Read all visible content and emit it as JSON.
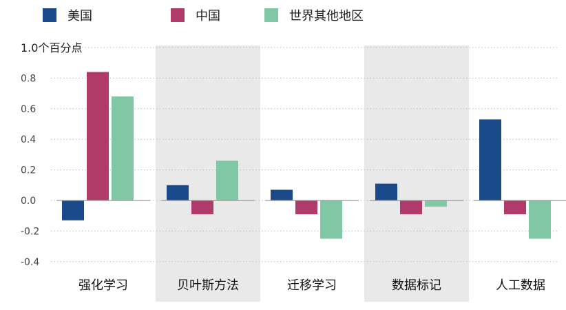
{
  "chart_data": {
    "type": "bar",
    "ylabel": "1.0个百分点",
    "ylim": [
      -0.4,
      1.0
    ],
    "yticks": [
      {
        "v": 0.8,
        "label": "0.8"
      },
      {
        "v": 0.6,
        "label": "0.6"
      },
      {
        "v": 0.4,
        "label": "0.4"
      },
      {
        "v": 0.2,
        "label": "0.2"
      },
      {
        "v": 0.0,
        "label": "0.0"
      },
      {
        "v": -0.2,
        "label": "-0.2"
      },
      {
        "v": -0.4,
        "label": "-0.4"
      }
    ],
    "categories": [
      "强化学习",
      "贝叶斯方法",
      "迁移学习",
      "数据标记",
      "人工数据"
    ],
    "shaded_categories": [
      false,
      true,
      false,
      true,
      false
    ],
    "legend_position": "top",
    "grid": "dotted-horizontal",
    "series": [
      {
        "name": "美国",
        "color": "#1a4a8a",
        "values": [
          -0.13,
          0.1,
          0.07,
          0.11,
          0.53
        ]
      },
      {
        "name": "中国",
        "color": "#b03a6a",
        "values": [
          0.84,
          -0.09,
          -0.09,
          -0.09,
          -0.09
        ]
      },
      {
        "name": "世界其他地区",
        "color": "#7fc7a5",
        "values": [
          0.68,
          0.26,
          -0.25,
          -0.04,
          -0.25
        ]
      }
    ],
    "colors": {
      "shade": "#e9e9e9",
      "grid": "#bbbbbb",
      "zero": "#999999"
    }
  }
}
